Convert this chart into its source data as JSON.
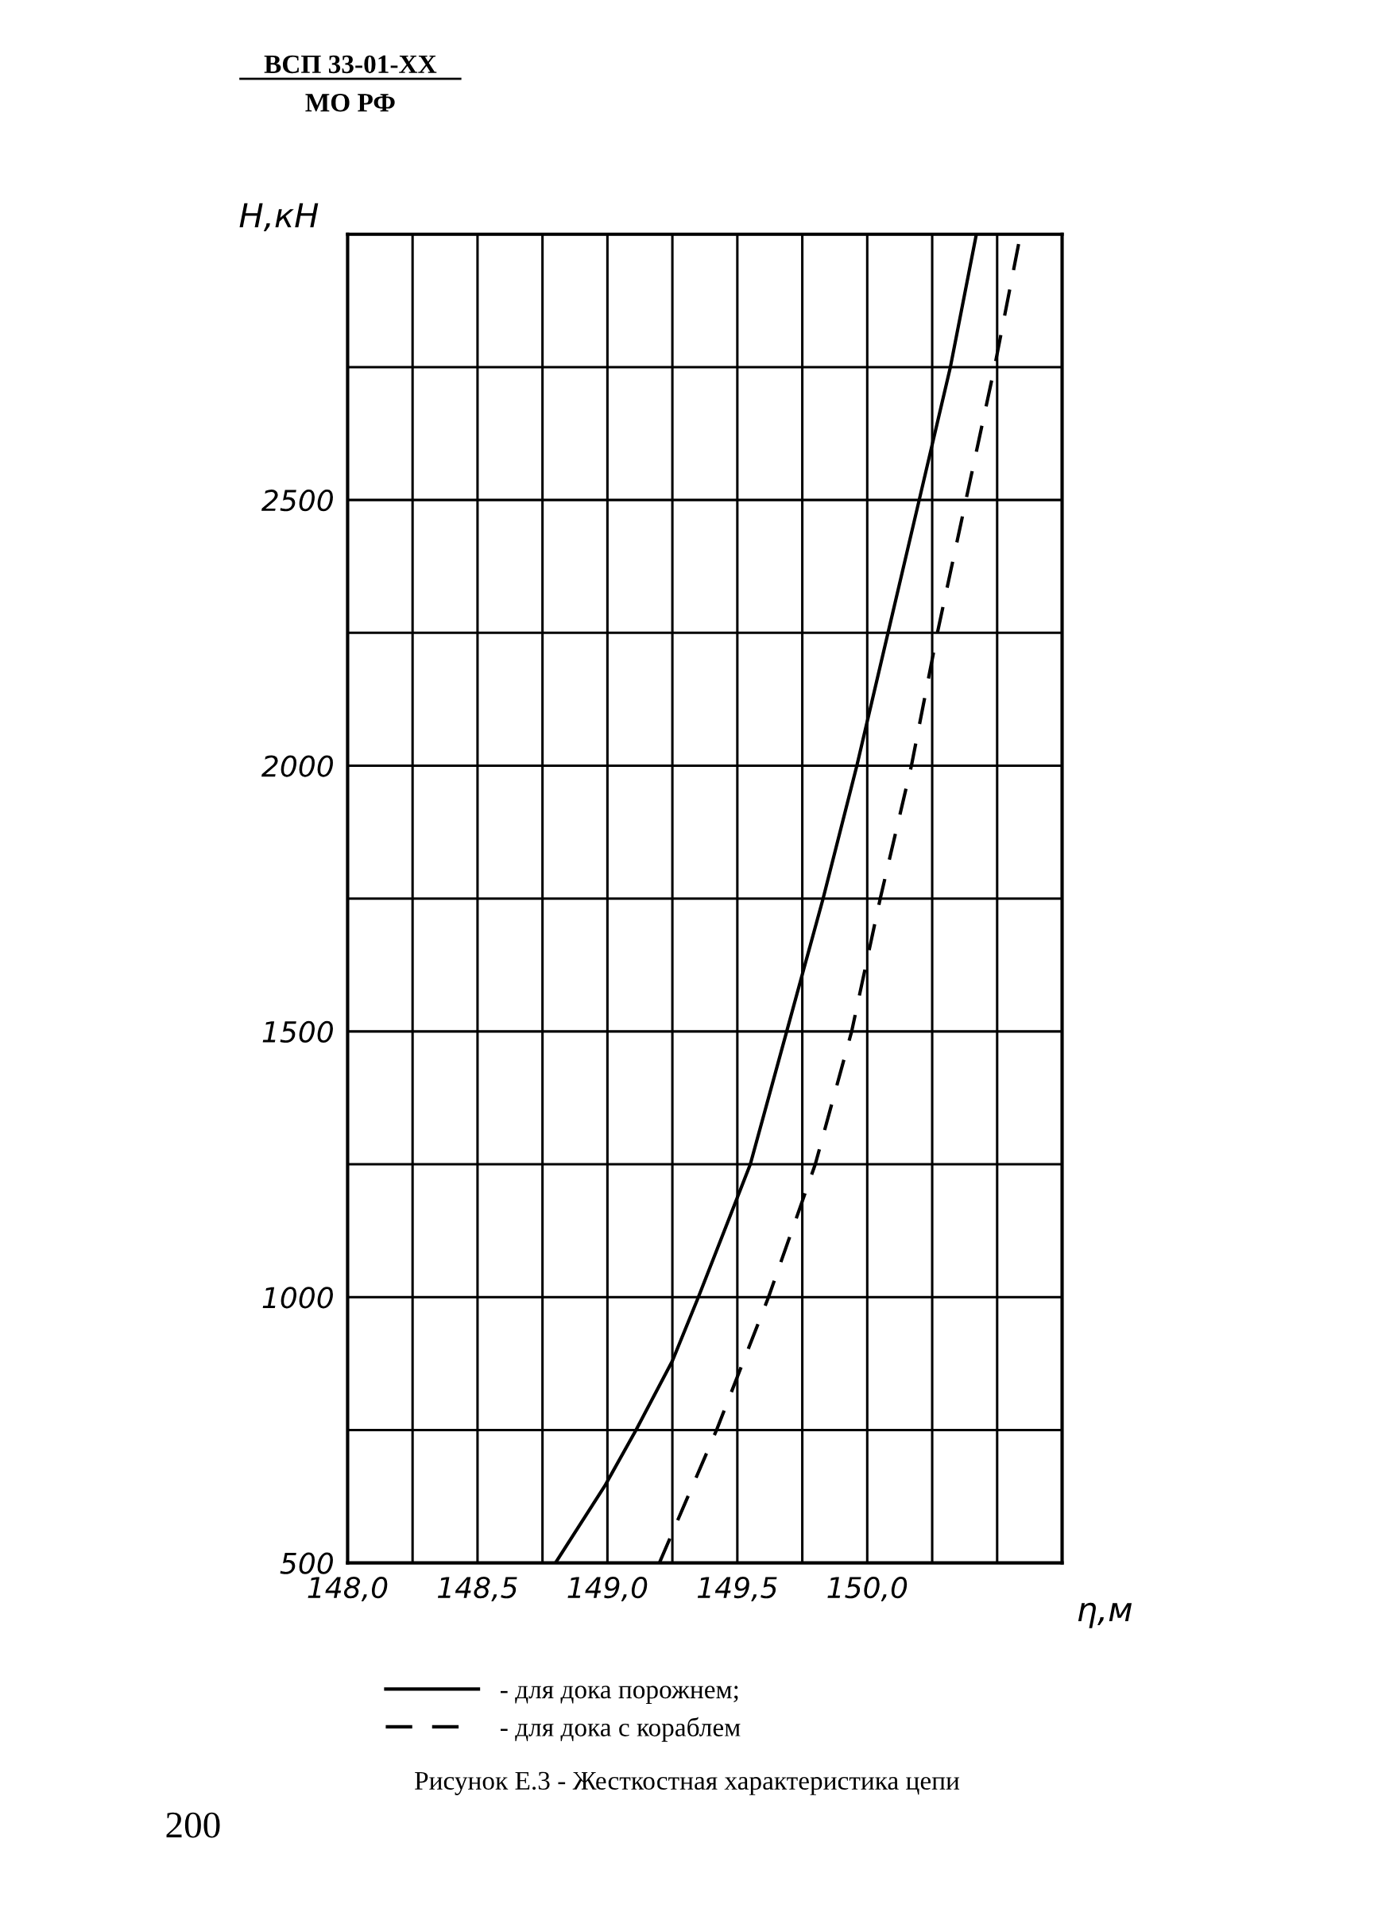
{
  "chart_data": {
    "type": "line",
    "title": "ВСП 33-01-ХХ",
    "subtitle": "МО РФ",
    "xlabel": "η,м",
    "ylabel": "H,кН",
    "annotations": [
      "Рисунок Е.3 - Жесткостная характеристика цепи",
      "200"
    ],
    "xlim": [
      148.0,
      150.75
    ],
    "xticks": [
      {
        "value": 148.0,
        "label": "148,0"
      },
      {
        "value": 148.25,
        "label": null
      },
      {
        "value": 148.5,
        "label": "148,5"
      },
      {
        "value": 148.75,
        "label": null
      },
      {
        "value": 149.0,
        "label": "149,0"
      },
      {
        "value": 149.25,
        "label": null
      },
      {
        "value": 149.5,
        "label": "149,5"
      },
      {
        "value": 149.75,
        "label": null
      },
      {
        "value": 150.0,
        "label": "150,0"
      },
      {
        "value": 150.25,
        "label": null
      },
      {
        "value": 150.5,
        "label": null
      },
      {
        "value": 150.75,
        "label": null
      }
    ],
    "ylim": [
      500,
      3000
    ],
    "yticks": [
      500,
      {
        "value": 750,
        "label": null
      },
      1000,
      {
        "value": 1250,
        "label": null
      },
      1500,
      {
        "value": 1750,
        "label": null
      },
      2000,
      {
        "value": 2250,
        "label": null
      },
      2500,
      {
        "value": 2750,
        "label": null
      },
      {
        "value": 3000,
        "label": null
      }
    ],
    "grid": true,
    "legend": "bottom",
    "marker": "none",
    "series": [
      {
        "name": "- для дока порожнем;",
        "color": "#000000",
        "line_style": "solid",
        "x": [
          148.8,
          148.99,
          149.11,
          149.25,
          149.35,
          149.55,
          149.69,
          149.83,
          149.96,
          150.08,
          150.2,
          150.32,
          150.42
        ],
        "values": [
          500,
          645,
          750,
          880,
          1000,
          1250,
          1500,
          1750,
          2000,
          2250,
          2500,
          2750,
          3000
        ]
      },
      {
        "name": "- для дока с кораблем",
        "color": "#000000",
        "line_style": "dashed",
        "x": [
          149.2,
          149.42,
          149.62,
          149.8,
          149.94,
          150.05,
          150.17,
          150.27,
          150.38,
          150.49,
          150.59
        ],
        "values": [
          500,
          750,
          1000,
          1250,
          1500,
          1750,
          2000,
          2250,
          2500,
          2750,
          3000
        ]
      }
    ]
  }
}
